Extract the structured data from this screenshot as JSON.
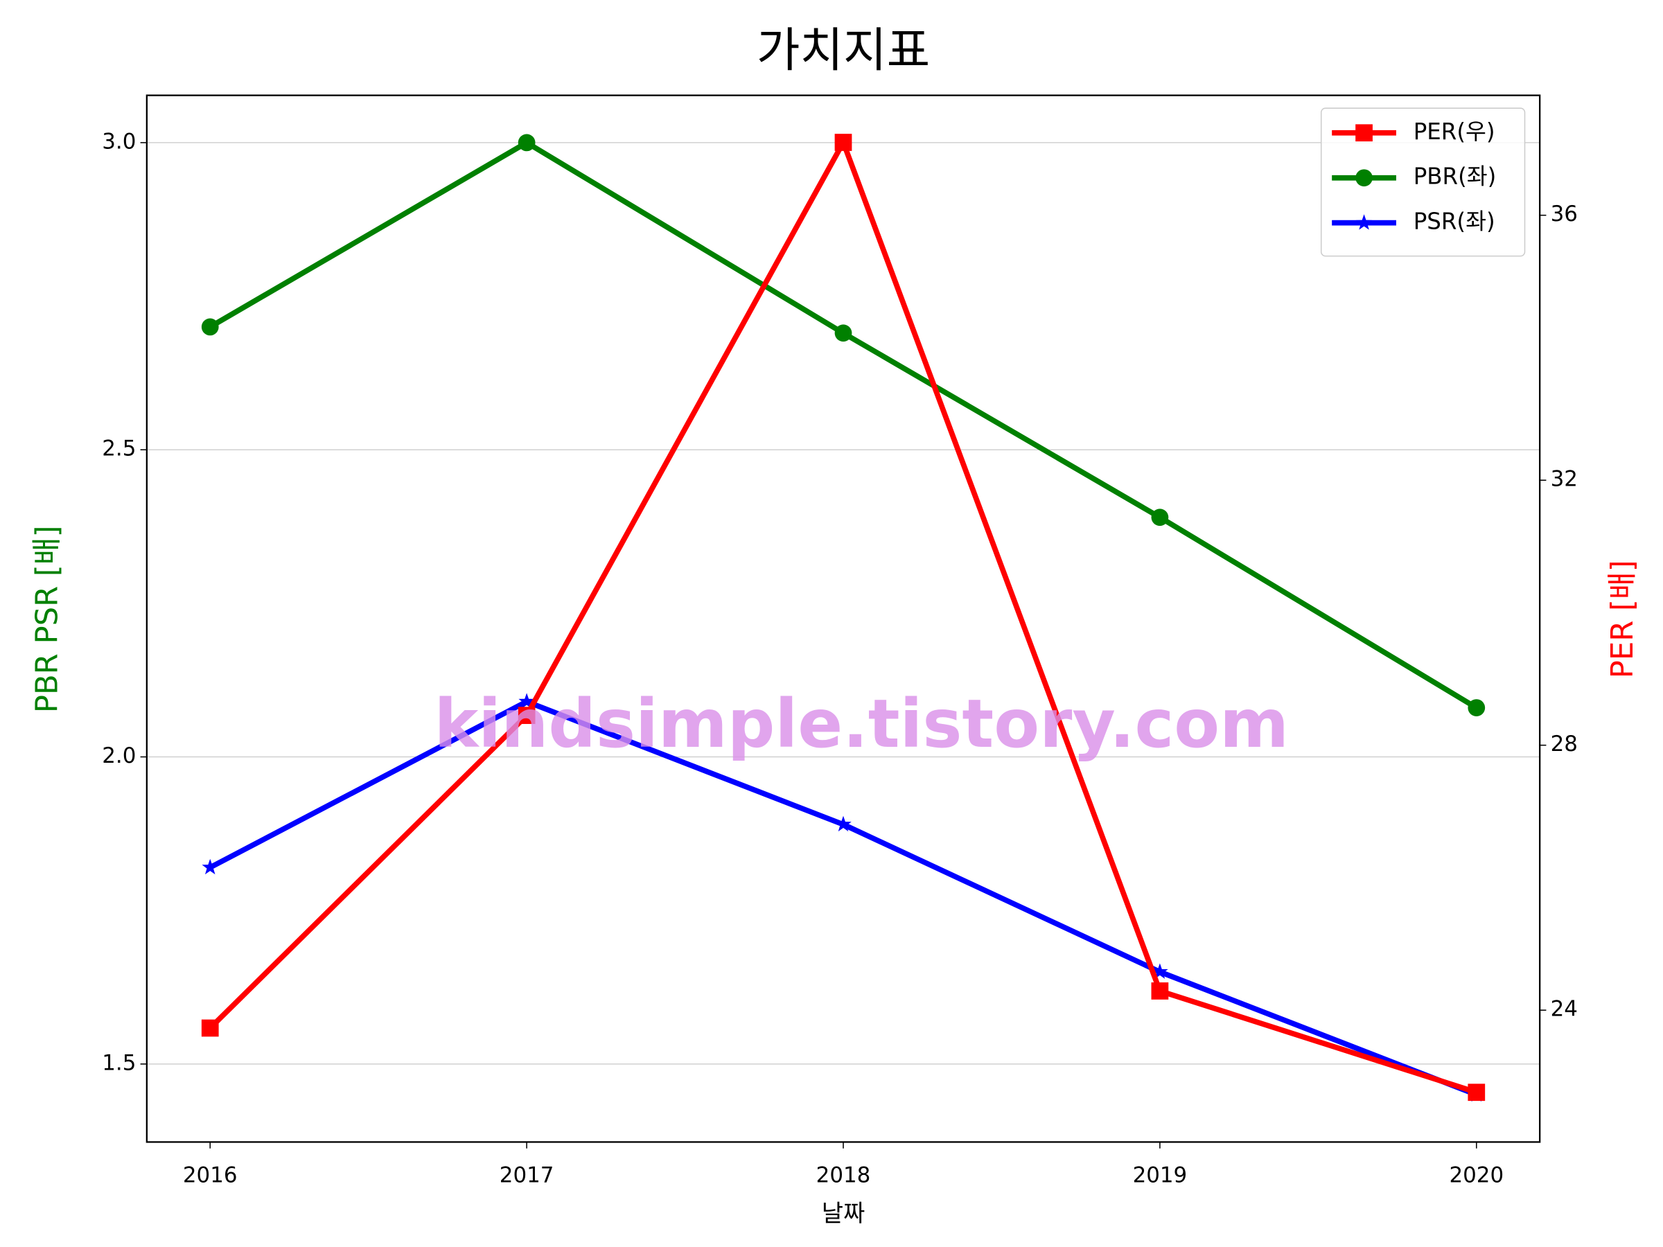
{
  "chart_data": {
    "type": "line",
    "title": "가치지표",
    "xlabel": "날짜",
    "ylabel": "PBR PSR [배]",
    "ylabel_color": "green",
    "y2label": "PER [배]",
    "y2label_color": "red",
    "watermark": "kindsimple.tistory.com",
    "x": [
      2016,
      2017,
      2018,
      2019,
      2020
    ],
    "xlim": [
      2015.8,
      2020.2
    ],
    "xticks": [
      2016,
      2017,
      2018,
      2019,
      2020
    ],
    "ylim": [
      1.373,
      3.077
    ],
    "yticks": [
      1.5,
      {
        "value": 2,
        "label": "2.0"
      },
      2.5,
      {
        "value": 3,
        "label": "3.0"
      }
    ],
    "y2lim": [
      22.01,
      37.81
    ],
    "y2ticks": [
      24,
      28,
      32,
      36
    ],
    "grid": true,
    "legend": "upper right",
    "series": [
      {
        "name": "PER(우)",
        "color": "#ff0000",
        "marker": "square",
        "axis": "y2",
        "values": [
          23.73,
          28.45,
          37.1,
          24.29,
          22.76
        ]
      },
      {
        "name": "PBR(좌)",
        "color": "#008000",
        "marker": "circle",
        "values": [
          2.7,
          3.0,
          2.69,
          2.39,
          2.08
        ]
      },
      {
        "name": "PSR(좌)",
        "color": "#0000ff",
        "marker": "star",
        "values": [
          1.82,
          2.09,
          1.89,
          1.65,
          1.45
        ]
      }
    ]
  }
}
